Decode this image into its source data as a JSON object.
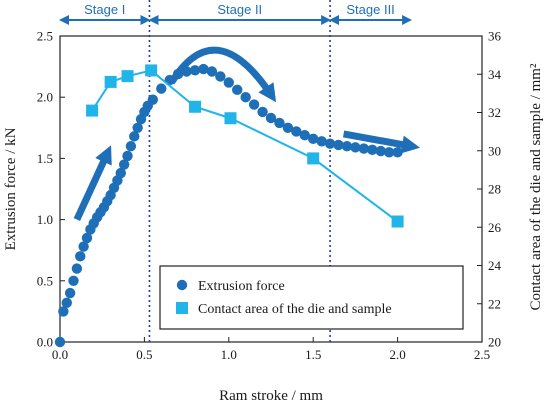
{
  "chart_data": {
    "type": "scatter",
    "xlabel": "Ram stroke / mm",
    "ylabel": "Extrusion force / kN",
    "y2label": "Contact area of the die and sample / mm²",
    "xlim": [
      0,
      2.5
    ],
    "ylim": [
      0,
      2.5
    ],
    "y2lim": [
      20,
      36
    ],
    "x_ticks": [
      "0.0",
      "0.5",
      "1.0",
      "1.5",
      "2.0",
      "2.5"
    ],
    "y_ticks": [
      "0.0",
      "0.5",
      "1.0",
      "1.5",
      "2.0",
      "2.5"
    ],
    "y2_ticks": [
      "20",
      "22",
      "24",
      "26",
      "28",
      "30",
      "32",
      "34",
      "36"
    ],
    "grid": false,
    "legend_position": "lower-right",
    "stage_boundaries": [
      0.53,
      1.6
    ],
    "stages": [
      {
        "label": "Stage I",
        "from": 0.0,
        "to": 0.53
      },
      {
        "label": "Stage II",
        "from": 0.53,
        "to": 1.6
      },
      {
        "label": "Stage III",
        "from": 1.6,
        "to": 2.08
      }
    ],
    "series": [
      {
        "name": "Extrusion force",
        "axis": "left",
        "marker": "circle",
        "color": "#1f6fb8",
        "x": [
          0.0,
          0.02,
          0.04,
          0.06,
          0.08,
          0.1,
          0.12,
          0.14,
          0.16,
          0.18,
          0.2,
          0.22,
          0.24,
          0.26,
          0.28,
          0.3,
          0.32,
          0.34,
          0.36,
          0.38,
          0.4,
          0.42,
          0.44,
          0.46,
          0.48,
          0.5,
          0.52,
          0.55,
          0.6,
          0.65,
          0.7,
          0.75,
          0.8,
          0.85,
          0.9,
          0.95,
          1.0,
          1.05,
          1.1,
          1.15,
          1.2,
          1.25,
          1.3,
          1.35,
          1.4,
          1.45,
          1.5,
          1.55,
          1.6,
          1.65,
          1.7,
          1.75,
          1.8,
          1.85,
          1.9,
          1.95,
          2.0
        ],
        "y": [
          0.0,
          0.25,
          0.32,
          0.4,
          0.5,
          0.6,
          0.7,
          0.78,
          0.85,
          0.92,
          0.97,
          1.02,
          1.06,
          1.1,
          1.15,
          1.2,
          1.26,
          1.32,
          1.38,
          1.45,
          1.52,
          1.6,
          1.68,
          1.75,
          1.82,
          1.88,
          1.93,
          1.98,
          2.07,
          2.14,
          2.19,
          2.21,
          2.22,
          2.23,
          2.21,
          2.17,
          2.12,
          2.06,
          2.0,
          1.94,
          1.88,
          1.83,
          1.79,
          1.75,
          1.72,
          1.69,
          1.66,
          1.64,
          1.62,
          1.61,
          1.6,
          1.59,
          1.58,
          1.57,
          1.56,
          1.55,
          1.55
        ]
      },
      {
        "name": "Contact area of the die and sample",
        "axis": "right",
        "marker": "square",
        "color": "#20b4e8",
        "x": [
          0.19,
          0.3,
          0.4,
          0.54,
          0.8,
          1.01,
          1.5,
          2.0
        ],
        "y": [
          32.1,
          33.6,
          33.9,
          34.2,
          32.3,
          31.7,
          29.6,
          26.3
        ]
      }
    ],
    "arrows": [
      {
        "from": [
          0.1,
          1.0
        ],
        "to": [
          0.28,
          1.54
        ]
      },
      {
        "from": [
          0.66,
          2.12
        ],
        "to": [
          1.25,
          2.02
        ]
      },
      {
        "from": [
          1.68,
          1.7
        ],
        "to": [
          2.08,
          1.6
        ]
      }
    ]
  }
}
